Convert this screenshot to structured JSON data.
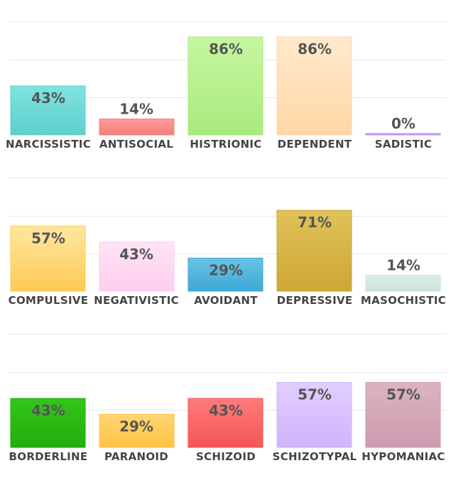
{
  "chart_data": [
    {
      "type": "bar",
      "categories": [
        "NARCISSISTIC",
        "ANTISOCIAL",
        "HISTRIONIC",
        "DEPENDENT",
        "SADISTIC"
      ],
      "values": [
        43,
        14,
        86,
        86,
        0
      ],
      "labels": [
        "43%",
        "14%",
        "86%",
        "86%",
        "0%"
      ],
      "colors": [
        [
          "#7fe3e0",
          "#5fcfcc"
        ],
        [
          "#ff9a97",
          "#f47f7c"
        ],
        [
          "#c5f7a0",
          "#a9ea7e"
        ],
        [
          "#ffe9cc",
          "#ffd7a6"
        ],
        [
          "#d7b8f6",
          "#b98ee6"
        ]
      ],
      "ylim": [
        0,
        100
      ],
      "grid": true
    },
    {
      "type": "bar",
      "categories": [
        "COMPULSIVE",
        "NEGATIVISTIC",
        "AVOIDANT",
        "DEPRESSIVE",
        "MASOCHISTIC"
      ],
      "values": [
        57,
        43,
        29,
        71,
        14
      ],
      "labels": [
        "57%",
        "43%",
        "29%",
        "71%",
        "14%"
      ],
      "colors": [
        [
          "#ffe7a0",
          "#ffca55"
        ],
        [
          "#ffe4f6",
          "#ffcdee"
        ],
        [
          "#68c3e6",
          "#3ea8d3"
        ],
        [
          "#e0c25a",
          "#cda734"
        ],
        [
          "#dcefe7",
          "#cce3da"
        ]
      ],
      "ylim": [
        0,
        100
      ],
      "grid": true
    },
    {
      "type": "bar",
      "categories": [
        "BORDERLINE",
        "PARANOID",
        "SCHIZOID",
        "SCHIZOTYPAL",
        "HYPOMANIAC"
      ],
      "values": [
        43,
        29,
        43,
        57,
        57
      ],
      "labels": [
        "43%",
        "29%",
        "43%",
        "57%",
        "57%"
      ],
      "colors": [
        [
          "#33c61a",
          "#22ad0c"
        ],
        [
          "#ffd573",
          "#ffc245"
        ],
        [
          "#ff7b7b",
          "#f45555"
        ],
        [
          "#e1ceff",
          "#cfb4fb"
        ],
        [
          "#dcb3c3",
          "#cd9aae"
        ]
      ],
      "ylim": [
        0,
        100
      ],
      "grid": true
    }
  ]
}
